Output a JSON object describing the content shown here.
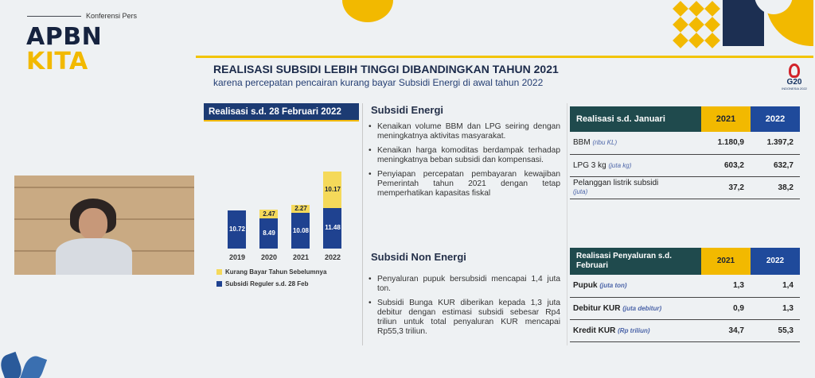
{
  "header": {
    "brand_small": "Konferensi Pers",
    "brand_line1": "APBN",
    "brand_line2": "KITA",
    "title": "REALISASI SUBSIDI LEBIH TINGGI DIBANDINGKAN TAHUN 2021",
    "subtitle": "karena percepatan pencairan kurang bayar Subsidi Energi di awal tahun 2022",
    "g20_label": "G20",
    "g20_sub": "INDONESIA 2022"
  },
  "chart_panel": {
    "heading": "Realisasi s.d. 28 Februari 2022",
    "legend_yellow": "Kurang Bayar Tahun Sebelumnya",
    "legend_blue": "Subsidi Reguler s.d. 28 Feb"
  },
  "chart_data": {
    "type": "bar",
    "stacked": true,
    "categories": [
      "2019",
      "2020",
      "2021",
      "2022"
    ],
    "series": [
      {
        "name": "Subsidi Reguler s.d. 28 Feb",
        "color": "#1f4290",
        "values": [
          10.72,
          8.49,
          10.08,
          11.48
        ]
      },
      {
        "name": "Kurang Bayar Tahun Sebelumnya",
        "color": "#f5d95a",
        "values": [
          0,
          2.47,
          2.27,
          10.17
        ]
      }
    ],
    "title": "",
    "xlabel": "",
    "ylabel": "",
    "ylim": [
      0,
      24
    ]
  },
  "energi": {
    "title": "Subsidi Energi",
    "bullets": [
      "Kenaikan volume BBM dan LPG seiring dengan meningkatnya aktivitas masyarakat.",
      "Kenaikan harga komoditas berdampak terhadap meningkatnya beban subsidi dan kompensasi.",
      "Penyiapan percepatan pembayaran kewajiban Pemerintah tahun 2021 dengan tetap memperhatikan kapasitas fiskal"
    ]
  },
  "non_energi": {
    "title": "Subsidi Non Energi",
    "bullets": [
      "Penyaluran pupuk bersubsidi mencapai 1,4 juta ton.",
      "Subsidi Bunga KUR diberikan kepada 1,3 juta debitur dengan estimasi subsidi sebesar Rp4 triliun untuk total penyaluran KUR mencapai Rp55,3 triliun."
    ]
  },
  "table1": {
    "head": "Realisasi s.d. Januari",
    "y1": "2021",
    "y2": "2022",
    "rows": [
      {
        "label": "BBM",
        "unit": "(ribu KL)",
        "v1": "1.180,9",
        "v2": "1.397,2"
      },
      {
        "label": "LPG 3 kg",
        "unit": "(juta kg)",
        "v1": "603,2",
        "v2": "632,7"
      },
      {
        "label": "Pelanggan listrik subsidi",
        "unit": "(juta)",
        "v1": "37,2",
        "v2": "38,2"
      }
    ]
  },
  "table2": {
    "head": "Realisasi Penyaluran s.d. Februari",
    "y1": "2021",
    "y2": "2022",
    "rows": [
      {
        "label": "Pupuk",
        "unit": "(juta ton)",
        "v1": "1,3",
        "v2": "1,4"
      },
      {
        "label": "Debitur KUR",
        "unit": "(juta debitur)",
        "v1": "0,9",
        "v2": "1,3"
      },
      {
        "label": "Kredit KUR",
        "unit": "(Rp triliun)",
        "v1": "34,7",
        "v2": "55,3"
      }
    ]
  }
}
